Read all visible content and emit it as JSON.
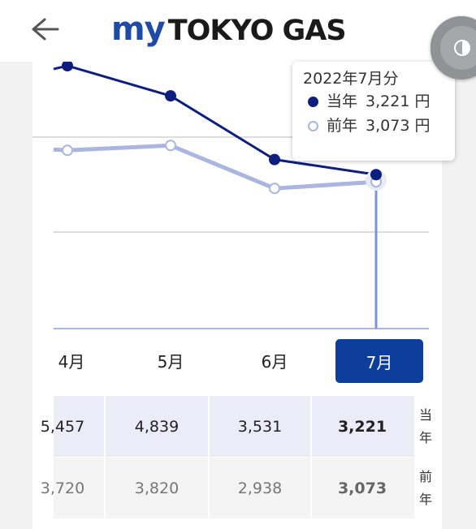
{
  "header": {
    "back_icon": "arrow-left-icon",
    "logo_my": "my",
    "logo_main": "TOKYO GAS",
    "float_icon": "contrast-toggle-icon"
  },
  "tooltip": {
    "title": "2022年7月分",
    "current_label": "当年",
    "current_value": "3,221 円",
    "previous_label": "前年",
    "previous_value": "3,073 円"
  },
  "months": {
    "m4": "4月",
    "m5": "5月",
    "m6": "6月",
    "m7": "7月"
  },
  "table": {
    "current": [
      "5,457",
      "4,839",
      "3,531",
      "3,221"
    ],
    "previous": [
      "3,720",
      "3,820",
      "2,938",
      "3,073"
    ],
    "current_label_1": "当",
    "current_label_2": "年",
    "previous_label_1": "前",
    "previous_label_2": "年"
  },
  "chart_data": {
    "type": "line",
    "categories": [
      "4月",
      "5月",
      "6月",
      "7月"
    ],
    "series": [
      {
        "name": "当年",
        "values": [
          5457,
          4839,
          3531,
          3221
        ]
      },
      {
        "name": "前年",
        "values": [
          3720,
          3820,
          2938,
          3073
        ]
      }
    ],
    "selected_category": "7月",
    "colors": {
      "current": "#0c1f80",
      "previous": "#aab5e0",
      "cursor": "#7d92dc"
    }
  }
}
